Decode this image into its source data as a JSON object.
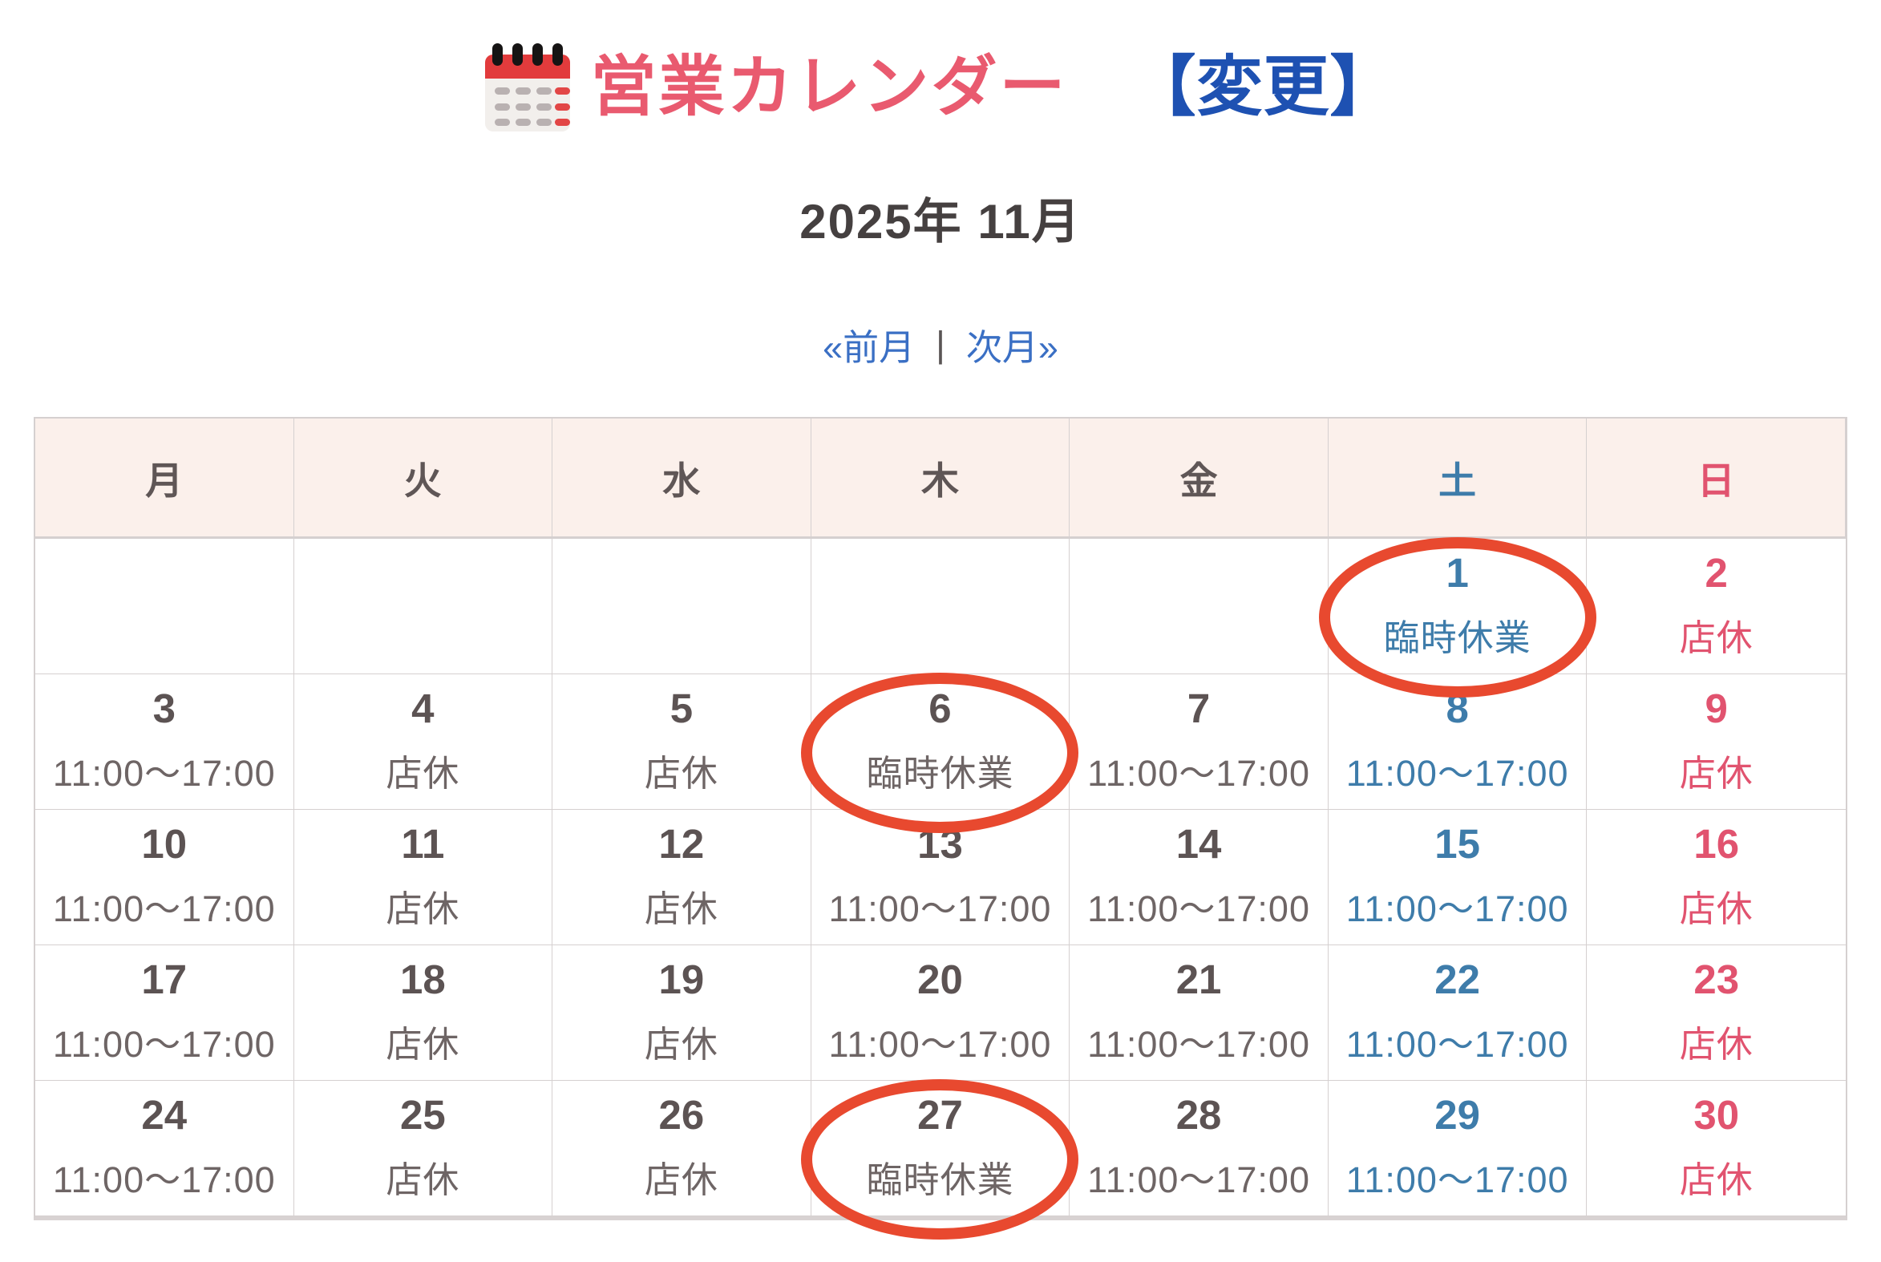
{
  "header": {
    "icon": "calendar-icon",
    "title": "営業カレンダー",
    "suffix": "【変更】",
    "month": "2025年 11月"
  },
  "nav": {
    "prev": "«前月",
    "separator": "|",
    "next": "次月»"
  },
  "calendar": {
    "weekdays": [
      {
        "label": "月",
        "kind": "weekday"
      },
      {
        "label": "火",
        "kind": "weekday"
      },
      {
        "label": "水",
        "kind": "weekday"
      },
      {
        "label": "木",
        "kind": "weekday"
      },
      {
        "label": "金",
        "kind": "weekday"
      },
      {
        "label": "土",
        "kind": "saturday"
      },
      {
        "label": "日",
        "kind": "sunday"
      }
    ],
    "cells": [
      {
        "day": "",
        "status": "",
        "kind": "weekday",
        "circled": false
      },
      {
        "day": "",
        "status": "",
        "kind": "weekday",
        "circled": false
      },
      {
        "day": "",
        "status": "",
        "kind": "weekday",
        "circled": false
      },
      {
        "day": "",
        "status": "",
        "kind": "weekday",
        "circled": false
      },
      {
        "day": "",
        "status": "",
        "kind": "weekday",
        "circled": false
      },
      {
        "day": "1",
        "status": "臨時休業",
        "kind": "saturday",
        "circled": true
      },
      {
        "day": "2",
        "status": "店休",
        "kind": "sunday",
        "circled": false
      },
      {
        "day": "3",
        "status": "11:00〜17:00",
        "kind": "weekday",
        "circled": false
      },
      {
        "day": "4",
        "status": "店休",
        "kind": "weekday",
        "circled": false
      },
      {
        "day": "5",
        "status": "店休",
        "kind": "weekday",
        "circled": false
      },
      {
        "day": "6",
        "status": "臨時休業",
        "kind": "weekday",
        "circled": true
      },
      {
        "day": "7",
        "status": "11:00〜17:00",
        "kind": "weekday",
        "circled": false
      },
      {
        "day": "8",
        "status": "11:00〜17:00",
        "kind": "saturday",
        "circled": false
      },
      {
        "day": "9",
        "status": "店休",
        "kind": "sunday",
        "circled": false
      },
      {
        "day": "10",
        "status": "11:00〜17:00",
        "kind": "weekday",
        "circled": false
      },
      {
        "day": "11",
        "status": "店休",
        "kind": "weekday",
        "circled": false
      },
      {
        "day": "12",
        "status": "店休",
        "kind": "weekday",
        "circled": false
      },
      {
        "day": "13",
        "status": "11:00〜17:00",
        "kind": "weekday",
        "circled": false
      },
      {
        "day": "14",
        "status": "11:00〜17:00",
        "kind": "weekday",
        "circled": false
      },
      {
        "day": "15",
        "status": "11:00〜17:00",
        "kind": "saturday",
        "circled": false
      },
      {
        "day": "16",
        "status": "店休",
        "kind": "sunday",
        "circled": false
      },
      {
        "day": "17",
        "status": "11:00〜17:00",
        "kind": "weekday",
        "circled": false
      },
      {
        "day": "18",
        "status": "店休",
        "kind": "weekday",
        "circled": false
      },
      {
        "day": "19",
        "status": "店休",
        "kind": "weekday",
        "circled": false
      },
      {
        "day": "20",
        "status": "11:00〜17:00",
        "kind": "weekday",
        "circled": false
      },
      {
        "day": "21",
        "status": "11:00〜17:00",
        "kind": "weekday",
        "circled": false
      },
      {
        "day": "22",
        "status": "11:00〜17:00",
        "kind": "saturday",
        "circled": false
      },
      {
        "day": "23",
        "status": "店休",
        "kind": "sunday",
        "circled": false
      },
      {
        "day": "24",
        "status": "11:00〜17:00",
        "kind": "weekday",
        "circled": false
      },
      {
        "day": "25",
        "status": "店休",
        "kind": "weekday",
        "circled": false
      },
      {
        "day": "26",
        "status": "店休",
        "kind": "weekday",
        "circled": false
      },
      {
        "day": "27",
        "status": "臨時休業",
        "kind": "weekday",
        "circled": true
      },
      {
        "day": "28",
        "status": "11:00〜17:00",
        "kind": "weekday",
        "circled": false
      },
      {
        "day": "29",
        "status": "11:00〜17:00",
        "kind": "saturday",
        "circled": false
      },
      {
        "day": "30",
        "status": "店休",
        "kind": "sunday",
        "circled": false
      }
    ]
  },
  "colors": {
    "title_pink": "#e95a6f",
    "title_blue": "#1e51b2",
    "nav_blue": "#3a6fc4",
    "saturday": "#3e7caa",
    "sunday": "#e1536f",
    "circle_red": "#e8492f",
    "header_bg": "#fbf0eb",
    "grid_line": "#d5d0d0"
  }
}
